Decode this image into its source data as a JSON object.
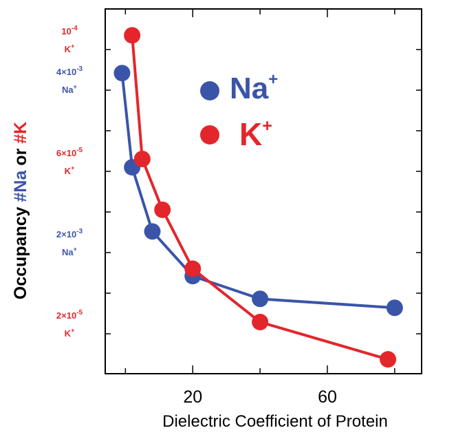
{
  "chart_data": {
    "type": "line",
    "title": "",
    "xlabel": "Dielectric Coefficient of Protein",
    "ylabel": {
      "prefix": "Occupancy ",
      "na_part": "#Na",
      "middle": " or ",
      "k_part": "#K"
    },
    "xlim": [
      -6,
      88
    ],
    "x_ticks": [
      20,
      60
    ],
    "x_tick_labels": [
      "20",
      "60"
    ],
    "legend": {
      "placement": "upper-right",
      "items": [
        {
          "name": "Na",
          "sup": "+",
          "color": "#3a55a8"
        },
        {
          "name": "K",
          "sup": "+",
          "color": "#e3262b"
        }
      ]
    },
    "y_axis_labels": [
      {
        "series": "K",
        "mantissa": "10",
        "exp": "-4",
        "ion": "K",
        "ion_sup": "+",
        "color": "#e3262b",
        "level": 0
      },
      {
        "series": "Na",
        "mantissa": "4×10",
        "exp": "-3",
        "ion": "Na",
        "ion_sup": "+",
        "color": "#3a55a8",
        "level": 1
      },
      {
        "series": "K",
        "mantissa": "6×10",
        "exp": "-5",
        "ion": "K",
        "ion_sup": "+",
        "color": "#e3262b",
        "level": 3
      },
      {
        "series": "Na",
        "mantissa": "2×10",
        "exp": "-3",
        "ion": "Na",
        "ion_sup": "+",
        "color": "#3a55a8",
        "level": 5
      },
      {
        "series": "K",
        "mantissa": "2×10",
        "exp": "-5",
        "ion": "K",
        "ion_sup": "+",
        "color": "#e3262b",
        "level": 7
      }
    ],
    "series": [
      {
        "name": "Na",
        "color": "#3a55a8",
        "x": [
          -1,
          2,
          8,
          20,
          40,
          80
        ],
        "y": [
          0.00421,
          0.00305,
          0.00226,
          0.00171,
          0.00143,
          0.00132
        ]
      },
      {
        "name": "K",
        "color": "#e3262b",
        "x": [
          2,
          5,
          11,
          20,
          40,
          78
        ],
        "y": [
          0.000104,
          6.92e-05,
          5.49e-05,
          3.83e-05,
          2.33e-05,
          1.28e-05
        ]
      }
    ]
  }
}
